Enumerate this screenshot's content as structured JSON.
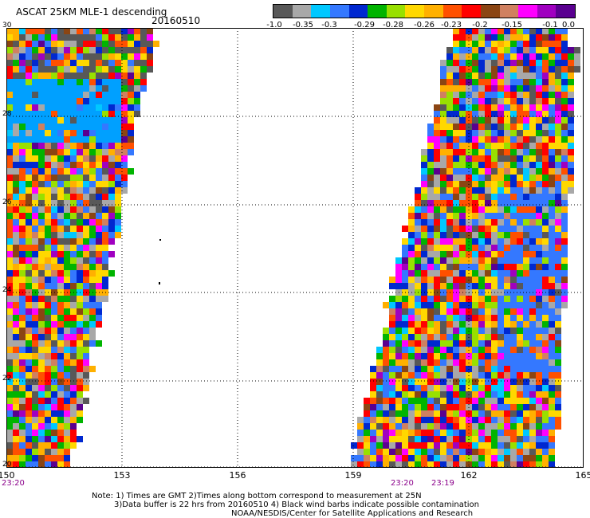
{
  "header": {
    "title": "ASCAT 25KM MLE-1 descending",
    "date": "20160510"
  },
  "colorbar": {
    "colors": [
      "#585858",
      "#a8a8a8",
      "#00c8ff",
      "#3478ff",
      "#0028d0",
      "#00b400",
      "#98e000",
      "#ffd800",
      "#ffb000",
      "#ff5000",
      "#ff0000",
      "#8b4513",
      "#d08060",
      "#ff00ff",
      "#a000c0",
      "#5a0090"
    ],
    "tick_labels": [
      "-1.0",
      "-0.35",
      "-0.3",
      "-0.29",
      "-0.28",
      "-0.26",
      "-0.23",
      "-0.2",
      "-0.15",
      "-0.1",
      "0.0"
    ]
  },
  "axes": {
    "lat_labels": [
      "30",
      "28",
      "26",
      "24",
      "22",
      "20"
    ],
    "lon_labels": [
      "150",
      "153",
      "156",
      "159",
      "162",
      "165"
    ]
  },
  "times": [
    "23:20",
    "23:20",
    "23:19"
  ],
  "notes": [
    "Note: 1) Times are GMT 2)Times along bottom correspond to measurement at 25N",
    "3)Data buffer is 22 hrs from 20160510 4) Black wind barbs indicate possible contamination",
    "NOAA/NESDIS/Center for Satellite Applications and Research"
  ]
}
